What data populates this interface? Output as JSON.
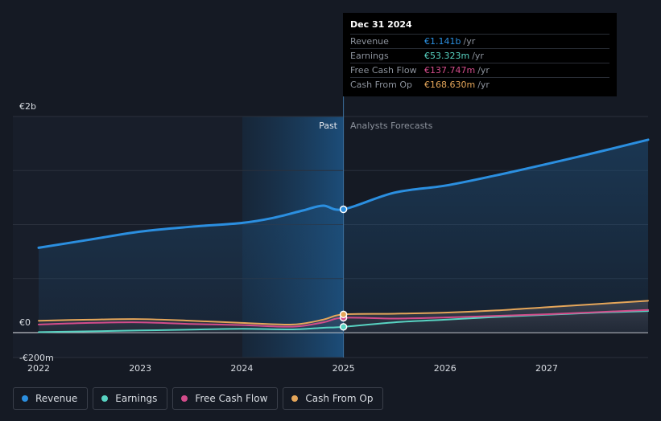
{
  "chart_data": {
    "type": "line",
    "x_ticks": [
      "2022",
      "2023",
      "2024",
      "2025",
      "2026",
      "2027"
    ],
    "y_ticks": [
      "€2b",
      "€0",
      "-€200m"
    ],
    "ylim": [
      -200,
      2000
    ],
    "y_unit": "€m",
    "past_label": "Past",
    "forecast_label": "Analysts Forecasts",
    "divider_x": 2025.0,
    "series": [
      {
        "name": "Revenue",
        "color": "#2b8fe0",
        "x": [
          2022.0,
          2022.5,
          2023.0,
          2023.5,
          2024.0,
          2024.3,
          2024.6,
          2024.8,
          2025.0,
          2025.5,
          2026.0,
          2026.5,
          2027.0,
          2027.5,
          2028.0
        ],
        "y": [
          785,
          860,
          935,
          980,
          1015,
          1060,
          1130,
          1175,
          1141,
          1295,
          1360,
          1455,
          1560,
          1670,
          1785
        ]
      },
      {
        "name": "Earnings",
        "color": "#58d3c2",
        "x": [
          2022.0,
          2022.5,
          2023.0,
          2023.5,
          2024.0,
          2024.5,
          2024.8,
          2025.0,
          2025.5,
          2026.0,
          2026.5,
          2027.0,
          2027.5,
          2028.0
        ],
        "y": [
          5,
          12,
          20,
          28,
          35,
          30,
          45,
          53.323,
          95,
          120,
          145,
          165,
          185,
          200
        ]
      },
      {
        "name": "Free Cash Flow",
        "color": "#d34c8b",
        "x": [
          2022.0,
          2022.5,
          2023.0,
          2023.5,
          2024.0,
          2024.5,
          2024.8,
          2025.0,
          2025.5,
          2026.0,
          2026.5,
          2027.0,
          2027.5,
          2028.0
        ],
        "y": [
          75,
          90,
          95,
          80,
          70,
          55,
          95,
          137.747,
          130,
          140,
          155,
          170,
          190,
          210
        ]
      },
      {
        "name": "Cash From Op",
        "color": "#e5a65a",
        "x": [
          2022.0,
          2022.5,
          2023.0,
          2023.5,
          2024.0,
          2024.5,
          2024.8,
          2025.0,
          2025.5,
          2026.0,
          2026.5,
          2027.0,
          2027.5,
          2028.0
        ],
        "y": [
          110,
          120,
          125,
          110,
          90,
          75,
          120,
          168.63,
          175,
          185,
          205,
          235,
          265,
          295
        ]
      }
    ],
    "highlight_points": [
      {
        "series": "Revenue",
        "x": 2025.0,
        "y": 1141
      },
      {
        "series": "Earnings",
        "x": 2025.0,
        "y": 53.323
      },
      {
        "series": "Free Cash Flow",
        "x": 2025.0,
        "y": 137.747
      },
      {
        "series": "Cash From Op",
        "x": 2025.0,
        "y": 168.63
      }
    ]
  },
  "tooltip": {
    "date": "Dec 31 2024",
    "rows": [
      {
        "label": "Revenue",
        "value": "€1.141b",
        "unit": "/yr",
        "color": "#2b8fe0"
      },
      {
        "label": "Earnings",
        "value": "€53.323m",
        "unit": "/yr",
        "color": "#58d3c2"
      },
      {
        "label": "Free Cash Flow",
        "value": "€137.747m",
        "unit": "/yr",
        "color": "#d34c8b"
      },
      {
        "label": "Cash From Op",
        "value": "€168.630m",
        "unit": "/yr",
        "color": "#e5a65a"
      }
    ]
  },
  "legend": [
    {
      "label": "Revenue",
      "color": "#2b8fe0"
    },
    {
      "label": "Earnings",
      "color": "#58d3c2"
    },
    {
      "label": "Free Cash Flow",
      "color": "#d34c8b"
    },
    {
      "label": "Cash From Op",
      "color": "#e5a65a"
    }
  ]
}
